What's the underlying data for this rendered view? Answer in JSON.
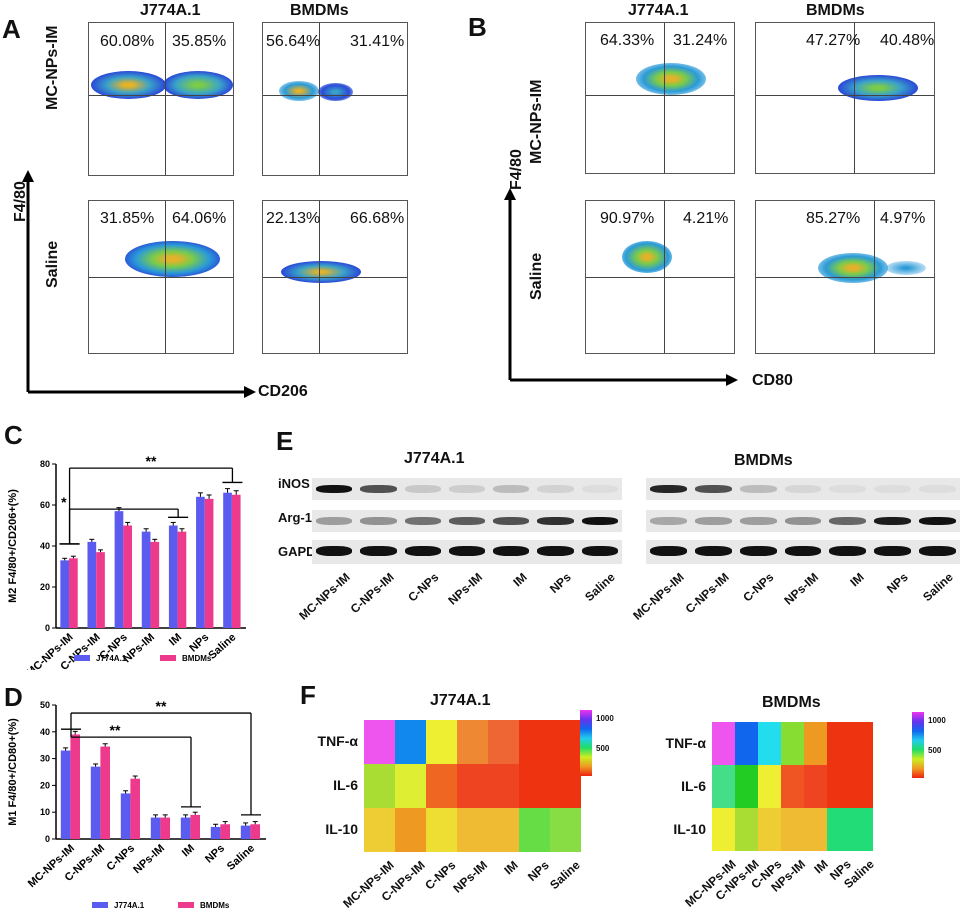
{
  "panels": {
    "A": {
      "letter": "A",
      "cols": [
        "J774A.1",
        "BMDMs"
      ],
      "rows": [
        "MC-NPs-IM",
        "Saline"
      ],
      "y_axis": "F4/80",
      "x_axis": "CD206",
      "quadrants": [
        [
          "60.08%",
          "35.85%"
        ],
        [
          "56.64%",
          "31.41%"
        ],
        [
          "31.85%",
          "64.06%"
        ],
        [
          "22.13%",
          "66.68%"
        ]
      ]
    },
    "B": {
      "letter": "B",
      "cols": [
        "J774A.1",
        "BMDMs"
      ],
      "rows": [
        "MC-NPs-IM",
        "Saline"
      ],
      "y_axis": "F4/80",
      "x_axis": "CD80",
      "quadrants": [
        [
          "64.33%",
          "31.24%"
        ],
        [
          "47.27%",
          "40.48%"
        ],
        [
          "90.97%",
          "4.21%"
        ],
        [
          "85.27%",
          "4.97%"
        ]
      ]
    },
    "C": {
      "letter": "C"
    },
    "D": {
      "letter": "D"
    },
    "E": {
      "letter": "E",
      "groups": [
        "J774A.1",
        "BMDMs"
      ],
      "proteins": [
        "iNOS",
        "Arg-1",
        "GAPDH"
      ],
      "lanes": [
        "MC-NPs-IM",
        "C-NPs-IM",
        "C-NPs",
        "NPs-IM",
        "IM",
        "NPs",
        "Saline"
      ]
    },
    "F": {
      "letter": "F",
      "groups": [
        "J774A.1",
        "BMDMs"
      ],
      "rows": [
        "TNF-α",
        "IL-6",
        "IL-10"
      ],
      "cols": [
        "MC-NPs-IM",
        "C-NPs-IM",
        "C-NPs",
        "NPs-IM",
        "IM",
        "NPs",
        "Saline"
      ],
      "legend_ticks": [
        "1000",
        "500"
      ],
      "colors": {
        "J774A.1": [
          [
            "#ee55ee",
            "#1188ee",
            "#eeee33",
            "#ee8833",
            "#ee6633",
            "#ee3311",
            "#ee3311"
          ],
          [
            "#aadd33",
            "#ddee33",
            "#ee6622",
            "#ee4422",
            "#ee4422",
            "#ee3311",
            "#ee3311"
          ],
          [
            "#eecc33",
            "#ee9922",
            "#eedd33",
            "#eebb33",
            "#eebb33",
            "#66dd44",
            "#88dd44"
          ]
        ],
        "BMDMs": [
          [
            "#ee55ee",
            "#1166ee",
            "#22ddee",
            "#88dd33",
            "#ee9922",
            "#ee3311",
            "#ee3311"
          ],
          [
            "#44dd88",
            "#22cc22",
            "#eeee33",
            "#ee5522",
            "#ee4422",
            "#ee3311",
            "#ee3311"
          ],
          [
            "#eeee33",
            "#aadd33",
            "#eecc33",
            "#eebb33",
            "#eebb33",
            "#22dd77",
            "#22dd77"
          ]
        ]
      }
    }
  },
  "chart_data": [
    {
      "type": "bar",
      "panel": "C",
      "ylabel": "M2 F4/80+/CD206+(%)",
      "ylim": [
        0,
        80
      ],
      "yticks": [
        "0",
        "20",
        "40",
        "60",
        "80"
      ],
      "categories": [
        "MC-NPs-IM",
        "C-NPs-IM",
        "C-NPs",
        "NPs-IM",
        "IM",
        "NPs",
        "Saline"
      ],
      "series": [
        {
          "name": "J774A.1",
          "color": "#5b5bef",
          "values": [
            33,
            42,
            57,
            47,
            50,
            64,
            66
          ]
        },
        {
          "name": "BMDMs",
          "color": "#ee3a8c",
          "values": [
            34,
            37,
            50,
            42,
            47,
            63,
            65
          ]
        }
      ],
      "annotations": [
        "*",
        "**"
      ]
    },
    {
      "type": "bar",
      "panel": "D",
      "ylabel": "M1 F4/80+/CD80+(%)",
      "ylim": [
        0,
        50
      ],
      "yticks": [
        "0",
        "10",
        "20",
        "30",
        "40",
        "50"
      ],
      "categories": [
        "MC-NPs-IM",
        "C-NPs-IM",
        "C-NPs",
        "NPs-IM",
        "IM",
        "NPs",
        "Saline"
      ],
      "series": [
        {
          "name": "J774A.1",
          "color": "#5b5bef",
          "values": [
            33,
            27,
            17,
            8,
            8,
            4.5,
            5
          ]
        },
        {
          "name": "BMDMs",
          "color": "#ee3a8c",
          "values": [
            39,
            34.5,
            22.5,
            8,
            9,
            5.5,
            5.5
          ]
        }
      ],
      "annotations": [
        "**",
        "**"
      ]
    }
  ]
}
